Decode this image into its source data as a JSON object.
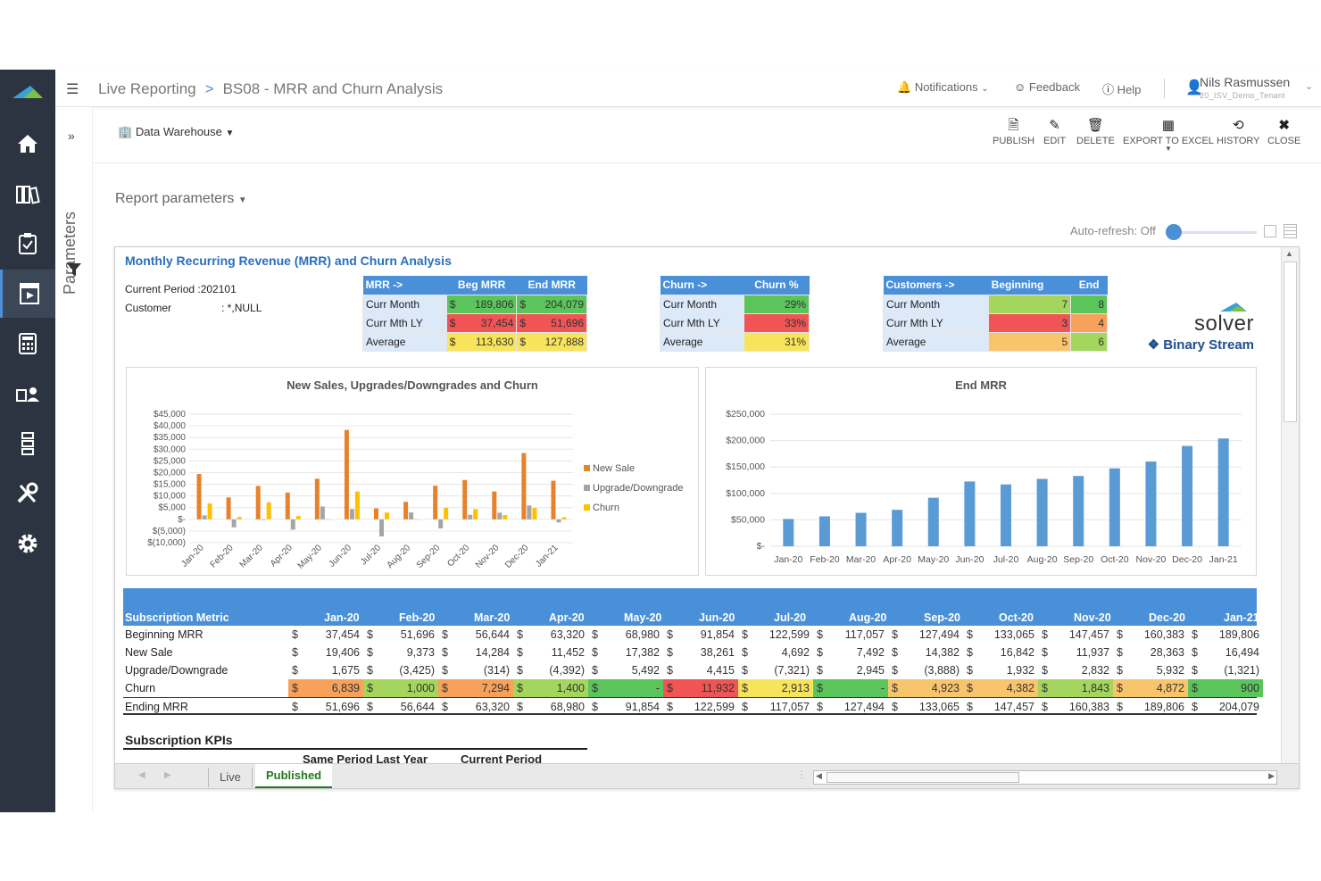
{
  "header": {
    "breadcrumb_root": "Live Reporting",
    "breadcrumb_sep": ">",
    "breadcrumb_current": "BS08 - MRR and Churn Analysis",
    "notifications": "Notifications",
    "feedback": "Feedback",
    "help": "Help",
    "user_name": "Nils Rasmussen",
    "tenant": "20_ISV_Demo_Tenant"
  },
  "sidebar": {
    "parameters_label": "Parameters"
  },
  "toolbar": {
    "data_source": "Data Warehouse",
    "publish": "PUBLISH",
    "edit": "EDIT",
    "delete": "DELETE",
    "export": "EXPORT TO EXCEL",
    "history": "HISTORY",
    "close": "CLOSE"
  },
  "report_parameters": "Report parameters",
  "auto_refresh": "Auto-refresh: Off",
  "report": {
    "title": "Monthly Recurring Revenue (MRR) and Churn Analysis",
    "current_period_label": "Current Period :202101",
    "customer_label": "Customer",
    "customer_value": ": *,NULL",
    "mrr_table": {
      "headers": [
        "MRR ->",
        "Beg MRR",
        "End MRR"
      ],
      "rows": [
        {
          "label": "Curr Month",
          "beg": "189,806",
          "end": "204,079"
        },
        {
          "label": "Curr Mth LY",
          "beg": "37,454",
          "end": "51,696"
        },
        {
          "label": "Average",
          "beg": "113,630",
          "end": "127,888"
        }
      ],
      "currency": "$"
    },
    "churn_table": {
      "headers": [
        "Churn ->",
        "Churn %"
      ],
      "rows": [
        {
          "label": "Curr Month",
          "value": "29%"
        },
        {
          "label": "Curr Mth LY",
          "value": "33%"
        },
        {
          "label": "Average",
          "value": "31%"
        }
      ]
    },
    "customers_table": {
      "headers": [
        "Customers ->",
        "Beginning",
        "End"
      ],
      "rows": [
        {
          "label": "Curr Month",
          "beginning": "7",
          "end": "8"
        },
        {
          "label": "Curr Mth LY",
          "beginning": "3",
          "end": "4"
        },
        {
          "label": "Average",
          "beginning": "5",
          "end": "6"
        }
      ]
    },
    "logo": {
      "word": "solver",
      "sub": "Binary Stream"
    },
    "subscription_kpis": "Subscription KPIs",
    "kpi_headers": [
      "Same Period Last Year",
      "Current Period"
    ]
  },
  "chart_data": [
    {
      "type": "bar",
      "title": "New Sales, Upgrades/Downgrades and Churn",
      "categories": [
        "Jan-20",
        "Feb-20",
        "Mar-20",
        "Apr-20",
        "May-20",
        "Jun-20",
        "Jul-20",
        "Aug-20",
        "Sep-20",
        "Oct-20",
        "Nov-20",
        "Dec-20",
        "Jan-21"
      ],
      "ylim": [
        -10000,
        45000
      ],
      "yticks": [
        "$45,000",
        "$40,000",
        "$35,000",
        "$30,000",
        "$25,000",
        "$20,000",
        "$15,000",
        "$10,000",
        "$5,000",
        "$-",
        "$(5,000)",
        "$(10,000)"
      ],
      "legend_position": "right",
      "series": [
        {
          "name": "New Sale",
          "color": "#e8822a",
          "values": [
            19406,
            9373,
            14284,
            11452,
            17382,
            38261,
            4692,
            7492,
            14382,
            16842,
            11937,
            28363,
            16494
          ]
        },
        {
          "name": "Upgrade/Downgrade",
          "color": "#a5a5a5",
          "values": [
            1675,
            -3425,
            -314,
            -4392,
            5492,
            4415,
            -7321,
            2945,
            -3888,
            1932,
            2832,
            5932,
            -1321
          ]
        },
        {
          "name": "Churn",
          "color": "#ffc000",
          "values": [
            6839,
            1000,
            7294,
            1400,
            0,
            11932,
            2913,
            0,
            4923,
            4382,
            1843,
            4872,
            900
          ]
        }
      ]
    },
    {
      "type": "bar",
      "title": "End MRR",
      "categories": [
        "Jan-20",
        "Feb-20",
        "Mar-20",
        "Apr-20",
        "May-20",
        "Jun-20",
        "Jul-20",
        "Aug-20",
        "Sep-20",
        "Oct-20",
        "Nov-20",
        "Dec-20",
        "Jan-21"
      ],
      "ylim": [
        0,
        250000
      ],
      "yticks": [
        "$250,000",
        "$200,000",
        "$150,000",
        "$100,000",
        "$50,000",
        "$-"
      ],
      "series": [
        {
          "color": "#5b9bd5",
          "values": [
            51696,
            56644,
            63320,
            68980,
            91854,
            122599,
            117057,
            127494,
            133065,
            147457,
            160383,
            189806,
            204079
          ]
        }
      ]
    }
  ],
  "subscription_table": {
    "metric_header": "Subscription Metric",
    "months": [
      "Jan-20",
      "Feb-20",
      "Mar-20",
      "Apr-20",
      "May-20",
      "Jun-20",
      "Jul-20",
      "Aug-20",
      "Sep-20",
      "Oct-20",
      "Nov-20",
      "Dec-20",
      "Jan-21"
    ],
    "rows": [
      {
        "label": "Beginning MRR",
        "values": [
          "37,454",
          "51,696",
          "56,644",
          "63,320",
          "68,980",
          "91,854",
          "122,599",
          "117,057",
          "127,494",
          "133,065",
          "147,457",
          "160,383",
          "189,806"
        ]
      },
      {
        "label": "New Sale",
        "values": [
          "19,406",
          "9,373",
          "14,284",
          "11,452",
          "17,382",
          "38,261",
          "4,692",
          "7,492",
          "14,382",
          "16,842",
          "11,937",
          "28,363",
          "16,494"
        ]
      },
      {
        "label": "Upgrade/Downgrade",
        "values": [
          "1,675",
          "(3,425)",
          "(314)",
          "(4,392)",
          "5,492",
          "4,415",
          "(7,321)",
          "2,945",
          "(3,888)",
          "1,932",
          "2,832",
          "5,932",
          "(1,321)"
        ]
      },
      {
        "label": "Churn",
        "values": [
          "6,839",
          "1,000",
          "7,294",
          "1,400",
          "-",
          "11,932",
          "2,913",
          "-",
          "4,923",
          "4,382",
          "1,843",
          "4,872",
          "900"
        ],
        "colors": [
          "#f7a15a",
          "#a4d65e",
          "#f7a15a",
          "#a4d65e",
          "#5bc45b",
          "#f05454",
          "#f8e45a",
          "#5bc45b",
          "#f9c56c",
          "#f9c56c",
          "#a4d65e",
          "#f9c56c",
          "#5bc45b"
        ]
      },
      {
        "label": "Ending MRR",
        "values": [
          "51,696",
          "56,644",
          "63,320",
          "68,980",
          "91,854",
          "122,599",
          "117,057",
          "127,494",
          "133,065",
          "147,457",
          "160,383",
          "189,806",
          "204,079"
        ]
      }
    ],
    "currency": "$"
  },
  "tabs": {
    "live": "Live",
    "published": "Published"
  }
}
